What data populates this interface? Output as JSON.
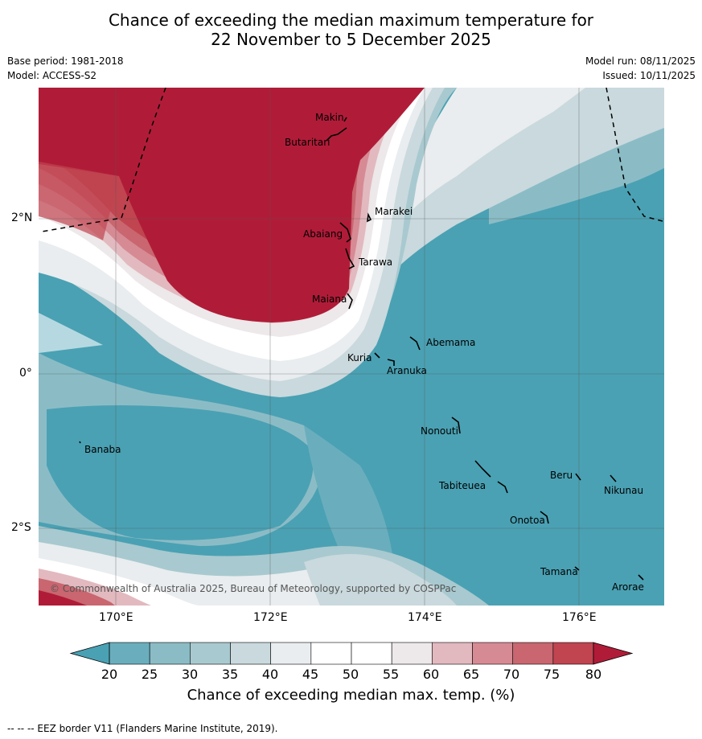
{
  "title": {
    "line1": "Chance of exceeding the median maximum temperature for",
    "line2": "22 November to 5 December 2025"
  },
  "meta": {
    "base_period": "Base period: 1981-2018",
    "model": "Model: ACCESS-S2",
    "model_run": "Model run: 08/11/2025",
    "issued": "Issued: 10/11/2025"
  },
  "axes": {
    "lat_labels": [
      "2°N",
      "0°",
      "2°S"
    ],
    "lon_labels": [
      "170°E",
      "172°E",
      "174°E",
      "176°E"
    ]
  },
  "places": [
    {
      "name": "Makin"
    },
    {
      "name": "Butaritari"
    },
    {
      "name": "Marakei"
    },
    {
      "name": "Abaiang"
    },
    {
      "name": "Tarawa"
    },
    {
      "name": "Maiana"
    },
    {
      "name": "Abemama"
    },
    {
      "name": "Kuria"
    },
    {
      "name": "Aranuka"
    },
    {
      "name": "Nonouti"
    },
    {
      "name": "Banaba"
    },
    {
      "name": "Beru"
    },
    {
      "name": "Tabiteuea"
    },
    {
      "name": "Nikunau"
    },
    {
      "name": "Onotoa"
    },
    {
      "name": "Tamana"
    },
    {
      "name": "Arorae"
    }
  ],
  "copyright": "© Commonwealth of Australia 2025, Bureau of Meteorology, supported by COSPPac",
  "colorbar": {
    "title": "Chance of exceeding median max. temp. (%)",
    "labels": [
      "20",
      "25",
      "30",
      "35",
      "40",
      "45",
      "50",
      "55",
      "60",
      "65",
      "70",
      "75",
      "80"
    ],
    "colors": {
      "low_extend": "#4aa1b3",
      "c20": "#6aaebd",
      "c25": "#8bbcc6",
      "c30": "#a8c9cf",
      "c35": "#c9d9dd",
      "c40": "#e9edef",
      "c45": "#ffffff",
      "c50": "#ffffff",
      "c55": "#ede8e9",
      "c60": "#e2b9bf",
      "c65": "#d68a94",
      "c70": "#c9666f",
      "c75": "#c04550",
      "high_extend": "#b01c38"
    }
  },
  "footnote": "--  --  -- EEZ border V11 (Flanders Marine Institute, 2019)."
}
